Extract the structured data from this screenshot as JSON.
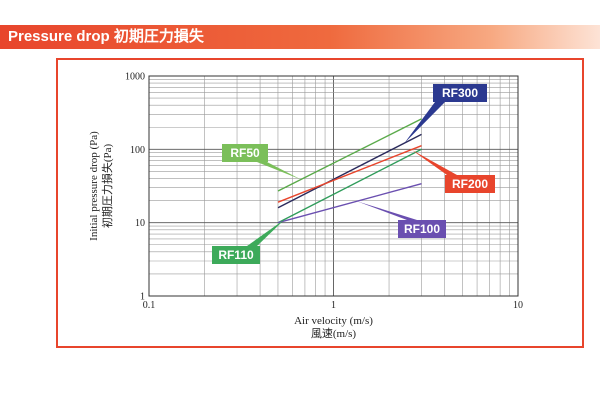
{
  "header": {
    "title": "Pressure drop 初期圧力損失",
    "color": "#e8452c"
  },
  "chart_data": {
    "type": "line",
    "x_scale": "log",
    "y_scale": "log",
    "xlim": [
      0.1,
      10
    ],
    "ylim": [
      1,
      1000
    ],
    "grid": true,
    "xlabel": "Air velocity (m/s)",
    "xlabel_sub": "風速(m/s)",
    "ylabel": "Initial pressure drop (Pa)",
    "ylabel_sub": "初期圧力損失(Pa)",
    "x_ticks": [
      {
        "value": 0.1,
        "label": "0.1"
      },
      {
        "value": 1,
        "label": "1"
      },
      {
        "value": 10,
        "label": "10"
      }
    ],
    "y_ticks": [
      {
        "value": 1,
        "label": "1"
      },
      {
        "value": 10,
        "label": "10"
      },
      {
        "value": 100,
        "label": "100"
      },
      {
        "value": 1000,
        "label": "1000"
      }
    ],
    "series": [
      {
        "name": "RF50",
        "color": "#5aaa4a",
        "x": [
          0.5,
          3.0
        ],
        "y": [
          27,
          260
        ]
      },
      {
        "name": "RF300",
        "color": "#2a2a5c",
        "x": [
          0.5,
          3.0
        ],
        "y": [
          16,
          160
        ]
      },
      {
        "name": "RF200",
        "color": "#e8452c",
        "x": [
          0.5,
          3.0
        ],
        "y": [
          19,
          112
        ]
      },
      {
        "name": "RF110",
        "color": "#2f9c5a",
        "x": [
          0.5,
          3.0
        ],
        "y": [
          10,
          100
        ]
      },
      {
        "name": "RF100",
        "color": "#6a4fb0",
        "x": [
          0.5,
          3.0
        ],
        "y": [
          10,
          34
        ]
      }
    ],
    "callouts": [
      {
        "series": "RF300",
        "label": "RF300",
        "color": "#2b3990"
      },
      {
        "series": "RF50",
        "label": "RF50",
        "color": "#7bbf5a"
      },
      {
        "series": "RF200",
        "label": "RF200",
        "color": "#e8452c"
      },
      {
        "series": "RF100",
        "label": "RF100",
        "color": "#6a4fb0"
      },
      {
        "series": "RF110",
        "label": "RF110",
        "color": "#3daa5a"
      }
    ]
  }
}
